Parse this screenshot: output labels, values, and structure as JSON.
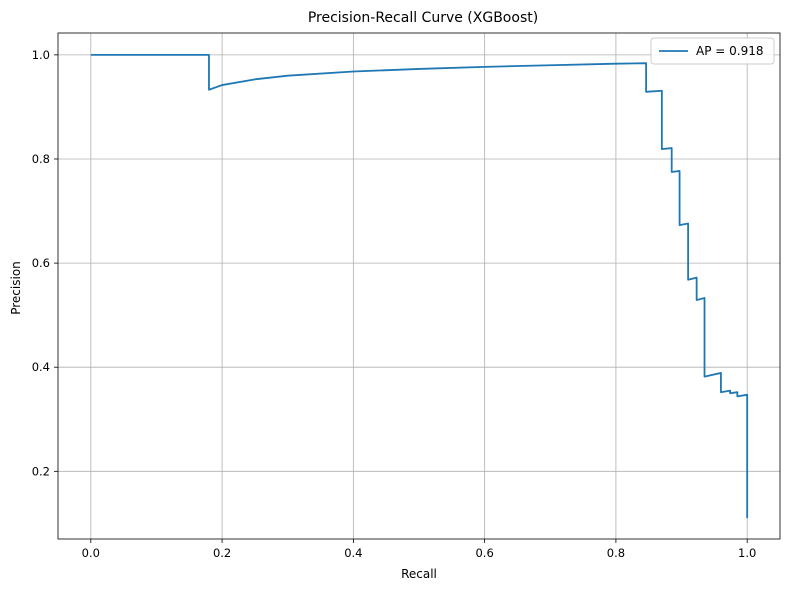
{
  "chart_data": {
    "type": "line",
    "title": "Precision-Recall Curve (XGBoost)",
    "xlabel": "Recall",
    "ylabel": "Precision",
    "xlim": [
      -0.05,
      1.05
    ],
    "ylim": [
      0.07,
      1.042
    ],
    "x_ticks": [
      "0.0",
      "0.2",
      "0.4",
      "0.6",
      "0.8",
      "1.0"
    ],
    "y_ticks": [
      "0.2",
      "0.4",
      "0.6",
      "0.8",
      "1.0"
    ],
    "x_tick_values": [
      0.0,
      0.2,
      0.4,
      0.6,
      0.8,
      1.0
    ],
    "y_tick_values": [
      0.2,
      0.4,
      0.6,
      0.8,
      1.0
    ],
    "grid": true,
    "legend_position": "top-right",
    "colors": {
      "series": "#1f77b4",
      "grid": "#b0b0b0"
    },
    "series": [
      {
        "name": "AP = 0.918",
        "x": [
          0.0,
          0.18,
          0.18,
          0.2,
          0.25,
          0.3,
          0.4,
          0.5,
          0.6,
          0.7,
          0.8,
          0.846,
          0.846,
          0.87,
          0.87,
          0.885,
          0.885,
          0.897,
          0.897,
          0.91,
          0.91,
          0.923,
          0.923,
          0.935,
          0.935,
          0.96,
          0.96,
          0.974,
          0.974,
          0.985,
          0.985,
          1.0,
          1.0
        ],
        "y": [
          1.0,
          1.0,
          0.933,
          0.942,
          0.953,
          0.96,
          0.968,
          0.973,
          0.977,
          0.98,
          0.983,
          0.984,
          0.929,
          0.931,
          0.819,
          0.821,
          0.775,
          0.777,
          0.673,
          0.676,
          0.568,
          0.572,
          0.529,
          0.533,
          0.382,
          0.389,
          0.352,
          0.355,
          0.35,
          0.352,
          0.344,
          0.347,
          0.11
        ]
      }
    ]
  }
}
